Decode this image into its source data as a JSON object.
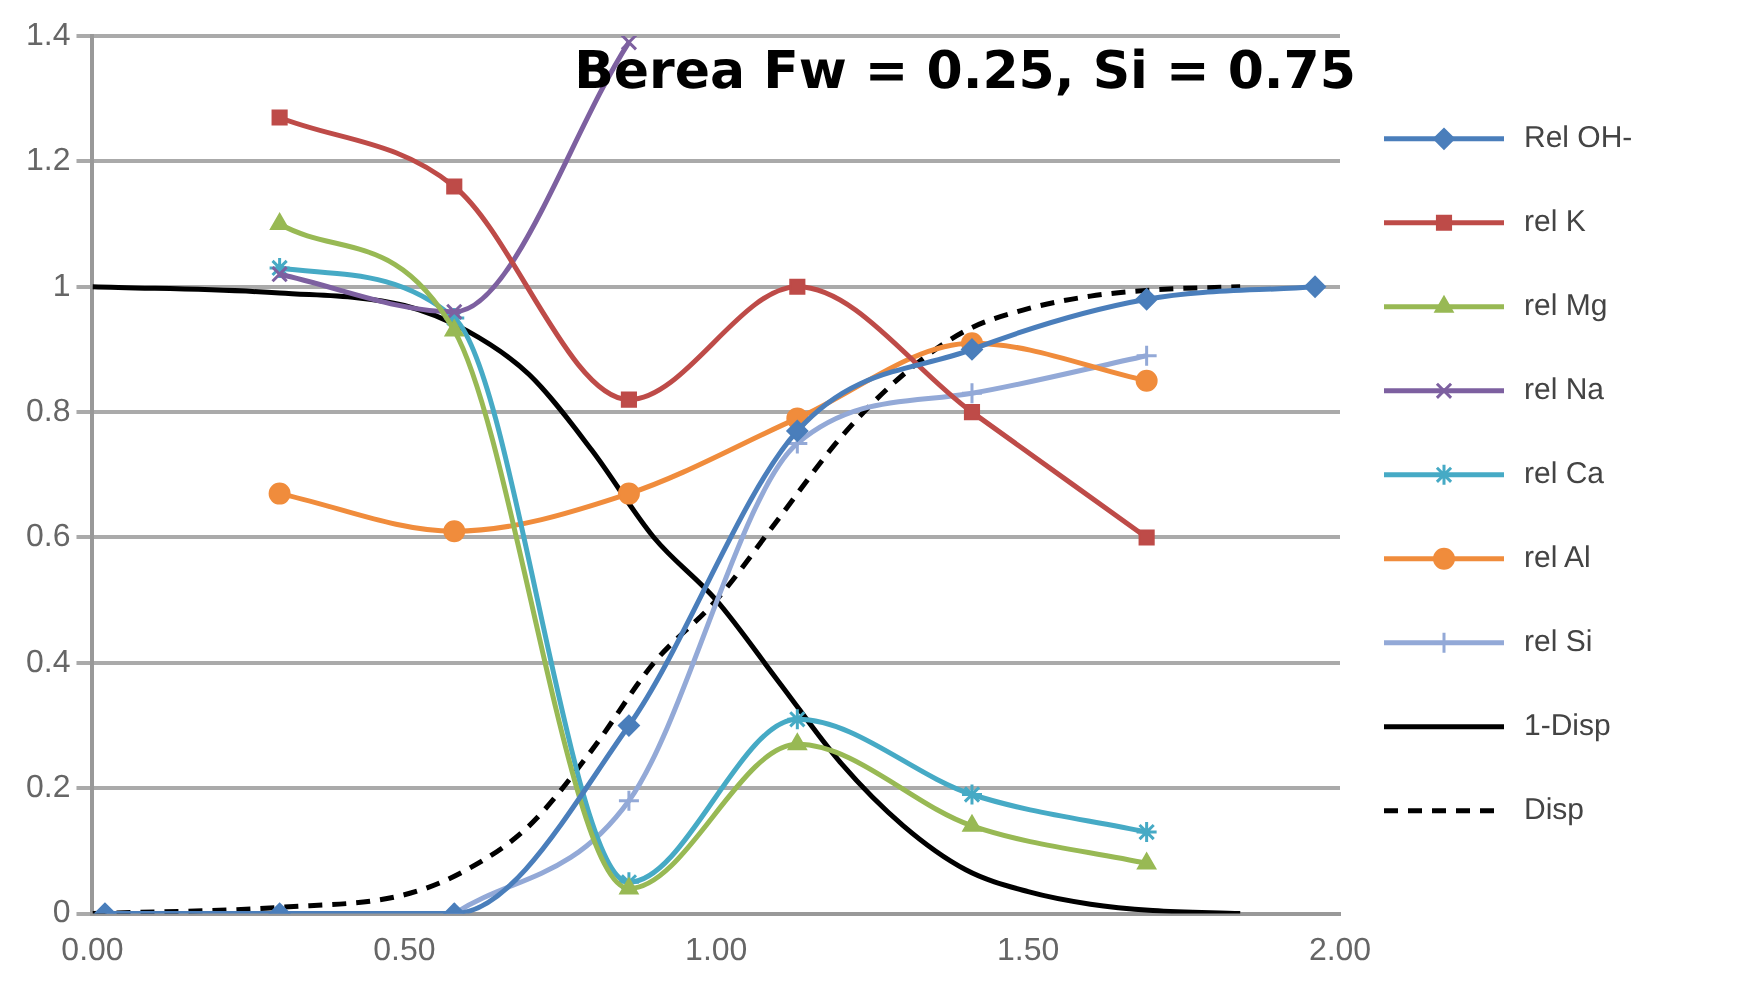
{
  "chart_data": {
    "type": "line",
    "title": "Berea Fw = 0.25, Si = 0.75",
    "xlim": [
      0,
      2
    ],
    "xticks": [
      {
        "value": 0,
        "label": "0.00"
      },
      {
        "value": 0.5,
        "label": "0.50"
      },
      {
        "value": 1,
        "label": "1.00"
      },
      {
        "value": 1.5,
        "label": "1.50"
      },
      {
        "value": 2,
        "label": "2.00"
      }
    ],
    "ylim": [
      0,
      1.4
    ],
    "yticks": [
      0,
      0.2,
      0.4,
      0.6,
      0.8,
      1,
      1.2,
      1.4
    ],
    "grid": "y",
    "legend": "right",
    "series": [
      {
        "name": "Rel OH-",
        "color": "#4a7ebb",
        "marker": "diamond",
        "x": [
          0.02,
          0.3,
          0.58,
          0.86,
          1.13,
          1.41,
          1.69,
          1.96
        ],
        "values": [
          0,
          0,
          0,
          0.3,
          0.77,
          0.9,
          0.98,
          1
        ]
      },
      {
        "name": "rel K",
        "color": "#be4b48",
        "marker": "square",
        "x": [
          0.3,
          0.58,
          0.86,
          1.13,
          1.41,
          1.69
        ],
        "values": [
          1.27,
          1.16,
          0.82,
          1,
          0.8,
          0.6
        ]
      },
      {
        "name": "rel Mg",
        "color": "#98b954",
        "marker": "triangle",
        "x": [
          0.3,
          0.58,
          0.86,
          1.13,
          1.41,
          1.69
        ],
        "values": [
          1.1,
          0.93,
          0.04,
          0.27,
          0.14,
          0.08
        ]
      },
      {
        "name": "rel Na",
        "color": "#7d60a0",
        "marker": "cross",
        "x": [
          0.3,
          0.58,
          0.86
        ],
        "values": [
          1.02,
          0.96,
          1.39
        ]
      },
      {
        "name": "rel Ca",
        "color": "#46aac5",
        "marker": "cross",
        "x": [
          0.3,
          0.58,
          0.86,
          1.13,
          1.41,
          1.69
        ],
        "values": [
          1.03,
          0.95,
          0.05,
          0.31,
          0.19,
          0.13
        ]
      },
      {
        "name": "rel Al",
        "color": "#f08c3c",
        "marker": "circle",
        "x": [
          0.3,
          0.58,
          0.86,
          1.13,
          1.41,
          1.69
        ],
        "values": [
          0.67,
          0.61,
          0.67,
          0.79,
          0.91,
          0.85
        ]
      },
      {
        "name": "rel Si",
        "color": "#93a9d7",
        "marker": "plus",
        "x": [
          0.58,
          0.86,
          1.13,
          1.41,
          1.69
        ],
        "values": [
          0,
          0.18,
          0.75,
          0.83,
          0.89
        ]
      },
      {
        "name": "1-Disp",
        "color": "#000000",
        "marker": "none",
        "line_style": "solid",
        "x": [
          0,
          0.3,
          0.5,
          0.6,
          0.7,
          0.8,
          0.9,
          1,
          1.1,
          1.2,
          1.3,
          1.4,
          1.5,
          1.6,
          1.7,
          1.84
        ],
        "values": [
          1,
          0.99,
          0.97,
          0.93,
          0.86,
          0.74,
          0.6,
          0.5,
          0.37,
          0.24,
          0.14,
          0.07,
          0.035,
          0.015,
          0.005,
          0
        ]
      },
      {
        "name": "Disp",
        "color": "#000000",
        "marker": "none",
        "line_style": "dashed",
        "x": [
          0,
          0.3,
          0.5,
          0.6,
          0.7,
          0.8,
          0.9,
          1,
          1.1,
          1.2,
          1.3,
          1.4,
          1.5,
          1.6,
          1.7,
          1.84
        ],
        "values": [
          0,
          0.01,
          0.03,
          0.07,
          0.14,
          0.26,
          0.4,
          0.5,
          0.63,
          0.76,
          0.86,
          0.93,
          0.965,
          0.985,
          0.995,
          1
        ]
      }
    ]
  }
}
